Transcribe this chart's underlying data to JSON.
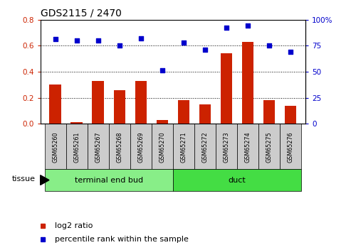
{
  "title": "GDS2115 / 2470",
  "samples": [
    "GSM65260",
    "GSM65261",
    "GSM65267",
    "GSM65268",
    "GSM65269",
    "GSM65270",
    "GSM65271",
    "GSM65272",
    "GSM65273",
    "GSM65274",
    "GSM65275",
    "GSM65276"
  ],
  "log2_ratio": [
    0.3,
    0.01,
    0.33,
    0.26,
    0.33,
    0.03,
    0.18,
    0.15,
    0.54,
    0.63,
    0.18,
    0.14
  ],
  "percentile_rank": [
    81,
    80,
    80,
    75,
    82,
    51,
    78,
    71,
    92,
    94,
    75,
    69
  ],
  "bar_color": "#cc2200",
  "dot_color": "#0000cc",
  "ylim_left": [
    0,
    0.8
  ],
  "ylim_right": [
    0,
    100
  ],
  "yticks_left": [
    0,
    0.2,
    0.4,
    0.6,
    0.8
  ],
  "yticks_right": [
    0,
    25,
    50,
    75,
    100
  ],
  "ytick_labels_right": [
    "0",
    "25",
    "50",
    "75",
    "100%"
  ],
  "groups": [
    {
      "label": "terminal end bud",
      "start": 0,
      "end": 6,
      "color": "#88ee88"
    },
    {
      "label": "duct",
      "start": 6,
      "end": 12,
      "color": "#44dd44"
    }
  ],
  "tissue_label": "tissue",
  "legend_bar_label": "log2 ratio",
  "legend_dot_label": "percentile rank within the sample",
  "background_color": "#ffffff",
  "plot_bg_color": "#ffffff",
  "left_label_color": "#cc2200",
  "right_label_color": "#0000cc",
  "tick_bg_color": "#cccccc",
  "n_samples": 12
}
